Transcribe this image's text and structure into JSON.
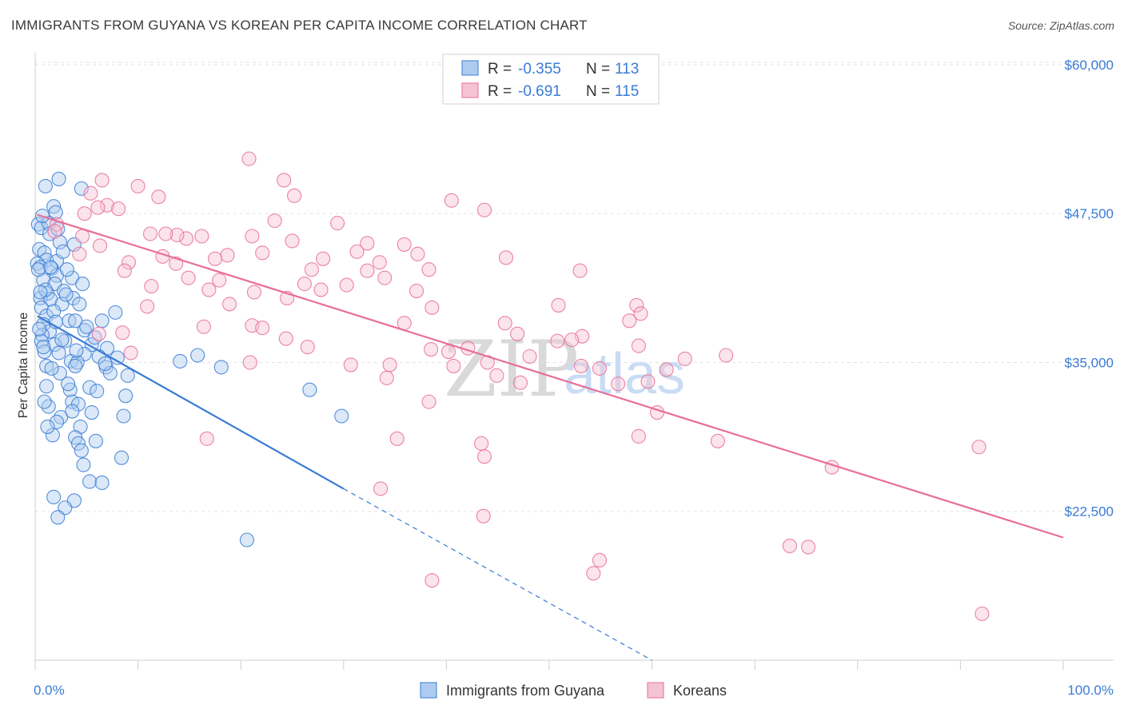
{
  "header": {
    "title": "IMMIGRANTS FROM GUYANA VS KOREAN PER CAPITA INCOME CORRELATION CHART",
    "source": "Source: ZipAtlas.com"
  },
  "watermark": {
    "zip": "ZIP",
    "atlas": "atlas"
  },
  "colors": {
    "blue": "#3a7bd5",
    "blue_fill": "#aecbef",
    "pink": "#e86e98",
    "pink_fill": "#f6c3d4"
  },
  "legend": {
    "rows": [
      {
        "r_label": "R =",
        "r_value": "-0.355",
        "n_label": "N =",
        "n_value": "113"
      },
      {
        "r_label": "R =",
        "r_value": "-0.691",
        "n_label": "N =",
        "n_value": "115"
      }
    ]
  },
  "chart_data": {
    "type": "scatter",
    "title": "IMMIGRANTS FROM GUYANA VS KOREAN PER CAPITA INCOME CORRELATION CHART",
    "xlabel": "",
    "ylabel": "Per Capita Income",
    "xlim": [
      0,
      100
    ],
    "ylim": [
      10000,
      61000
    ],
    "x_tick_labels": [
      "0.0%",
      "100.0%"
    ],
    "y_ticks": [
      22500,
      35000,
      47500,
      60000
    ],
    "y_tick_labels": [
      "$22,500",
      "$35,000",
      "$47,500",
      "$60,000"
    ],
    "series": [
      {
        "name": "Immigrants from Guyana",
        "color": "#3a7bd5",
        "trend": {
          "x1": 0.2,
          "y1": 38900,
          "x2": 30,
          "y2": 24400,
          "dash_to_x": 60,
          "dash_to_y": 10000
        },
        "points": [
          [
            1.0,
            49.8
          ],
          [
            1.8,
            48.1
          ],
          [
            2.3,
            50.4
          ],
          [
            4.5,
            49.6
          ],
          [
            2.0,
            47.6
          ],
          [
            0.3,
            46.6
          ],
          [
            0.6,
            46.3
          ],
          [
            1.3,
            46.7
          ],
          [
            2.4,
            45.1
          ],
          [
            3.8,
            44.9
          ],
          [
            0.4,
            44.5
          ],
          [
            0.9,
            44.2
          ],
          [
            1.1,
            43.6
          ],
          [
            2.1,
            43.5
          ],
          [
            0.2,
            43.3
          ],
          [
            0.5,
            43.0
          ],
          [
            1.6,
            42.9
          ],
          [
            3.6,
            42.1
          ],
          [
            0.8,
            41.9
          ],
          [
            2.1,
            42.3
          ],
          [
            1.9,
            41.6
          ],
          [
            1.2,
            40.8
          ],
          [
            0.5,
            40.4
          ],
          [
            3.7,
            40.4
          ],
          [
            1.5,
            40.3
          ],
          [
            2.6,
            39.9
          ],
          [
            4.3,
            39.9
          ],
          [
            0.6,
            39.6
          ],
          [
            1.1,
            38.9
          ],
          [
            3.3,
            38.5
          ],
          [
            3.9,
            38.5
          ],
          [
            0.8,
            38.2
          ],
          [
            1.4,
            37.6
          ],
          [
            0.7,
            37.3
          ],
          [
            2.9,
            36.8
          ],
          [
            0.6,
            36.8
          ],
          [
            1.9,
            36.5
          ],
          [
            5.5,
            36.5
          ],
          [
            7.0,
            36.2
          ],
          [
            2.3,
            35.8
          ],
          [
            4.8,
            35.7
          ],
          [
            6.2,
            35.5
          ],
          [
            8.0,
            35.4
          ],
          [
            3.5,
            35.1
          ],
          [
            14.1,
            35.1
          ],
          [
            15.8,
            35.6
          ],
          [
            4.1,
            35.0
          ],
          [
            1.1,
            34.7
          ],
          [
            3.9,
            34.7
          ],
          [
            6.9,
            34.6
          ],
          [
            18.1,
            34.6
          ],
          [
            2.4,
            34.1
          ],
          [
            7.3,
            34.1
          ],
          [
            9.0,
            33.9
          ],
          [
            1.1,
            33.0
          ],
          [
            5.3,
            32.9
          ],
          [
            3.4,
            32.7
          ],
          [
            26.7,
            32.7
          ],
          [
            8.8,
            32.2
          ],
          [
            3.6,
            31.7
          ],
          [
            1.3,
            31.3
          ],
          [
            4.2,
            31.5
          ],
          [
            5.5,
            30.8
          ],
          [
            8.6,
            30.5
          ],
          [
            2.5,
            30.4
          ],
          [
            29.8,
            30.5
          ],
          [
            2.1,
            30.0
          ],
          [
            4.4,
            29.6
          ],
          [
            1.7,
            28.9
          ],
          [
            3.9,
            28.7
          ],
          [
            5.9,
            28.4
          ],
          [
            4.2,
            28.2
          ],
          [
            4.5,
            27.6
          ],
          [
            8.4,
            27.0
          ],
          [
            4.7,
            26.4
          ],
          [
            5.3,
            25.0
          ],
          [
            6.5,
            24.9
          ],
          [
            1.8,
            23.7
          ],
          [
            3.8,
            23.4
          ],
          [
            2.9,
            22.8
          ],
          [
            2.2,
            22.0
          ],
          [
            20.6,
            20.1
          ],
          [
            0.4,
            37.8
          ],
          [
            0.9,
            35.9
          ],
          [
            6.5,
            38.5
          ],
          [
            1.8,
            39.3
          ],
          [
            0.3,
            42.8
          ],
          [
            4.8,
            37.7
          ],
          [
            2.8,
            41.0
          ],
          [
            1.4,
            45.8
          ],
          [
            7.8,
            39.2
          ],
          [
            0.7,
            47.3
          ],
          [
            3.1,
            42.8
          ],
          [
            2.6,
            36.9
          ],
          [
            5.0,
            38.0
          ],
          [
            1.6,
            34.5
          ],
          [
            0.9,
            31.7
          ],
          [
            6.0,
            32.6
          ],
          [
            2.0,
            38.4
          ],
          [
            4.0,
            36.0
          ],
          [
            3.2,
            33.2
          ],
          [
            1.0,
            41.1
          ],
          [
            5.8,
            37.1
          ],
          [
            0.5,
            40.9
          ],
          [
            2.7,
            44.3
          ],
          [
            1.5,
            43.0
          ],
          [
            0.8,
            36.3
          ],
          [
            3.0,
            40.7
          ],
          [
            6.8,
            34.9
          ],
          [
            2.2,
            46.2
          ],
          [
            4.6,
            41.6
          ],
          [
            1.2,
            29.6
          ],
          [
            3.6,
            30.9
          ]
        ]
      },
      {
        "name": "Koreans",
        "color": "#e86e98",
        "trend": {
          "x1": 0.2,
          "y1": 47400,
          "x2": 100,
          "y2": 20300
        },
        "points": [
          [
            20.8,
            52.1
          ],
          [
            24.2,
            50.3
          ],
          [
            6.5,
            50.3
          ],
          [
            10.0,
            49.8
          ],
          [
            5.4,
            49.2
          ],
          [
            12.0,
            48.9
          ],
          [
            25.2,
            49.0
          ],
          [
            40.5,
            48.6
          ],
          [
            43.7,
            47.8
          ],
          [
            7.0,
            48.2
          ],
          [
            6.1,
            48.0
          ],
          [
            8.1,
            47.9
          ],
          [
            4.8,
            47.5
          ],
          [
            2.1,
            46.6
          ],
          [
            11.2,
            45.8
          ],
          [
            14.7,
            45.4
          ],
          [
            21.1,
            45.6
          ],
          [
            23.3,
            46.9
          ],
          [
            29.4,
            46.7
          ],
          [
            13.8,
            45.7
          ],
          [
            16.2,
            45.6
          ],
          [
            12.7,
            45.8
          ],
          [
            25.0,
            45.2
          ],
          [
            32.3,
            45.0
          ],
          [
            35.9,
            44.9
          ],
          [
            4.3,
            44.1
          ],
          [
            18.7,
            44.0
          ],
          [
            22.1,
            44.2
          ],
          [
            31.3,
            44.3
          ],
          [
            37.2,
            44.1
          ],
          [
            45.8,
            43.8
          ],
          [
            17.5,
            43.7
          ],
          [
            28.0,
            43.7
          ],
          [
            33.5,
            43.4
          ],
          [
            9.1,
            43.4
          ],
          [
            13.7,
            43.3
          ],
          [
            26.9,
            42.8
          ],
          [
            38.3,
            42.8
          ],
          [
            53.0,
            42.7
          ],
          [
            8.7,
            42.7
          ],
          [
            32.3,
            42.7
          ],
          [
            34.0,
            42.1
          ],
          [
            14.9,
            42.1
          ],
          [
            17.9,
            41.9
          ],
          [
            26.2,
            41.6
          ],
          [
            11.3,
            41.4
          ],
          [
            16.9,
            41.1
          ],
          [
            21.3,
            40.9
          ],
          [
            27.8,
            41.1
          ],
          [
            37.1,
            41.0
          ],
          [
            24.5,
            40.4
          ],
          [
            10.9,
            39.7
          ],
          [
            18.9,
            39.9
          ],
          [
            50.9,
            39.8
          ],
          [
            58.5,
            39.8
          ],
          [
            38.6,
            39.6
          ],
          [
            35.9,
            38.3
          ],
          [
            45.7,
            38.3
          ],
          [
            57.8,
            38.5
          ],
          [
            58.9,
            39.1
          ],
          [
            16.4,
            38.0
          ],
          [
            21.1,
            38.1
          ],
          [
            22.1,
            37.9
          ],
          [
            53.2,
            37.2
          ],
          [
            58.7,
            36.4
          ],
          [
            6.2,
            37.4
          ],
          [
            8.5,
            37.5
          ],
          [
            46.9,
            37.4
          ],
          [
            52.2,
            36.9
          ],
          [
            24.4,
            37.0
          ],
          [
            38.5,
            36.1
          ],
          [
            42.1,
            36.2
          ],
          [
            26.5,
            36.3
          ],
          [
            48.1,
            35.5
          ],
          [
            63.2,
            35.3
          ],
          [
            61.4,
            34.4
          ],
          [
            40.2,
            35.9
          ],
          [
            9.3,
            35.8
          ],
          [
            20.9,
            35.0
          ],
          [
            30.7,
            34.8
          ],
          [
            34.5,
            34.8
          ],
          [
            53.1,
            34.7
          ],
          [
            54.9,
            34.5
          ],
          [
            40.7,
            34.7
          ],
          [
            44.9,
            33.9
          ],
          [
            56.7,
            33.2
          ],
          [
            47.2,
            33.3
          ],
          [
            34.2,
            33.7
          ],
          [
            38.3,
            31.7
          ],
          [
            60.5,
            30.8
          ],
          [
            16.7,
            28.6
          ],
          [
            35.2,
            28.6
          ],
          [
            43.4,
            28.2
          ],
          [
            58.7,
            28.8
          ],
          [
            66.4,
            28.4
          ],
          [
            91.8,
            27.9
          ],
          [
            43.7,
            27.1
          ],
          [
            77.5,
            26.2
          ],
          [
            33.6,
            24.4
          ],
          [
            43.6,
            22.1
          ],
          [
            73.4,
            19.6
          ],
          [
            75.2,
            19.5
          ],
          [
            54.9,
            18.4
          ],
          [
            38.6,
            16.7
          ],
          [
            54.3,
            17.3
          ],
          [
            92.1,
            13.9
          ],
          [
            4.6,
            45.6
          ],
          [
            1.9,
            46.0
          ],
          [
            30.3,
            41.5
          ],
          [
            12.4,
            43.9
          ],
          [
            6.3,
            44.8
          ],
          [
            50.8,
            36.8
          ],
          [
            44.0,
            35.0
          ],
          [
            67.2,
            35.6
          ],
          [
            59.6,
            33.4
          ]
        ]
      }
    ],
    "legend": [
      "Immigrants from Guyana",
      "Koreans"
    ]
  }
}
